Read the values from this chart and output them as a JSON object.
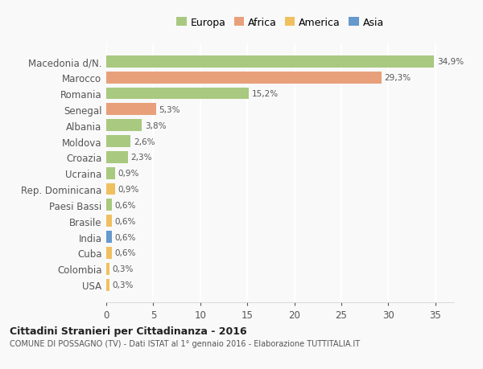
{
  "categories": [
    "Macedonia d/N.",
    "Marocco",
    "Romania",
    "Senegal",
    "Albania",
    "Moldova",
    "Croazia",
    "Ucraina",
    "Rep. Dominicana",
    "Paesi Bassi",
    "Brasile",
    "India",
    "Cuba",
    "Colombia",
    "USA"
  ],
  "values": [
    34.9,
    29.3,
    15.2,
    5.3,
    3.8,
    2.6,
    2.3,
    0.9,
    0.9,
    0.6,
    0.6,
    0.6,
    0.6,
    0.3,
    0.3
  ],
  "labels": [
    "34,9%",
    "29,3%",
    "15,2%",
    "5,3%",
    "3,8%",
    "2,6%",
    "2,3%",
    "0,9%",
    "0,9%",
    "0,6%",
    "0,6%",
    "0,6%",
    "0,6%",
    "0,3%",
    "0,3%"
  ],
  "continents": [
    "Europa",
    "Africa",
    "Europa",
    "Africa",
    "Europa",
    "Europa",
    "Europa",
    "Europa",
    "America",
    "Europa",
    "America",
    "Asia",
    "America",
    "America",
    "America"
  ],
  "colors": {
    "Europa": "#a8c97f",
    "Africa": "#e8a07a",
    "America": "#f0c060",
    "Asia": "#6699cc"
  },
  "xlim": [
    0,
    37
  ],
  "title": "Cittadini Stranieri per Cittadinanza - 2016",
  "subtitle": "COMUNE DI POSSAGNO (TV) - Dati ISTAT al 1° gennaio 2016 - Elaborazione TUTTITALIA.IT",
  "bg_color": "#f9f9f9",
  "grid_color": "#ffffff",
  "label_color": "#555555",
  "bar_height": 0.75
}
